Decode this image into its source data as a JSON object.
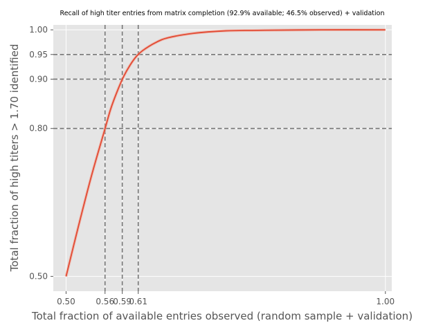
{
  "chart_data": {
    "type": "line",
    "title": "Recall of high titer entries from matrix completion (92.9% available; 46.5% observed) + validation",
    "xlabel": "Total fraction of available entries observed (random sample + validation)",
    "ylabel": "Total fraction of high titers > 1.70 identified",
    "xlim": [
      0.48,
      1.01
    ],
    "ylim": [
      0.47,
      1.01
    ],
    "x_ticks": [
      "0.50",
      "0.56",
      "0.59",
      "0.61",
      "1.00"
    ],
    "x_tick_values": [
      0.5,
      0.561,
      0.588,
      0.613,
      1.0
    ],
    "y_ticks": [
      "0.50",
      "0.80",
      "0.90",
      "0.95",
      "1.00"
    ],
    "y_tick_values": [
      0.5,
      0.8,
      0.9,
      0.95,
      1.0
    ],
    "reference_lines": {
      "horizontal": [
        0.8,
        0.9,
        0.95
      ],
      "vertical": [
        0.561,
        0.588,
        0.613
      ]
    },
    "grid": true,
    "series": [
      {
        "color": "#E24A33",
        "x": [
          0.5,
          0.52,
          0.54,
          0.56,
          0.57,
          0.58,
          0.59,
          0.6,
          0.61,
          0.62,
          0.64,
          0.66,
          0.7,
          0.75,
          0.8,
          0.9,
          1.0
        ],
        "y": [
          0.5,
          0.605,
          0.705,
          0.795,
          0.84,
          0.875,
          0.905,
          0.928,
          0.946,
          0.958,
          0.974,
          0.984,
          0.993,
          0.998,
          0.999,
          1.0,
          1.0
        ]
      }
    ]
  }
}
